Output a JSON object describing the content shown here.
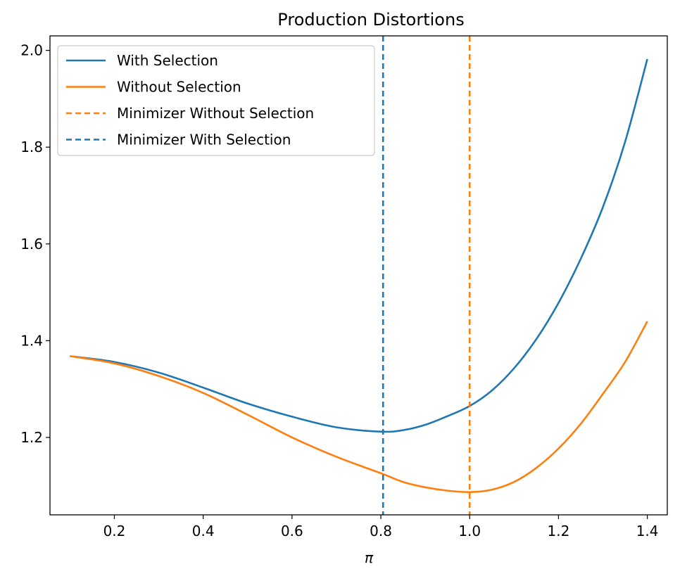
{
  "chart_data": {
    "type": "line",
    "title": "Production Distortions",
    "xlabel": "π",
    "ylabel": "",
    "xlim": [
      0.055,
      1.445
    ],
    "ylim": [
      1.04,
      2.03
    ],
    "xticks": [
      0.2,
      0.4,
      0.6,
      0.8,
      1.0,
      1.2,
      1.4
    ],
    "xtick_labels": [
      "0.2",
      "0.4",
      "0.6",
      "0.8",
      "1.0",
      "1.2",
      "1.4"
    ],
    "yticks": [
      1.2,
      1.4,
      1.6,
      1.8,
      2.0
    ],
    "ytick_labels": [
      "1.2",
      "1.4",
      "1.6",
      "1.8",
      "2.0"
    ],
    "grid": false,
    "legend_position": "top-left",
    "series": [
      {
        "name": "With Selection",
        "color": "#1f77b4",
        "style": "solid",
        "x": [
          0.1,
          0.2,
          0.3,
          0.4,
          0.5,
          0.6,
          0.7,
          0.8,
          0.85,
          0.9,
          0.95,
          1.0,
          1.05,
          1.1,
          1.15,
          1.2,
          1.25,
          1.3,
          1.35,
          1.4
        ],
        "y": [
          1.368,
          1.356,
          1.334,
          1.303,
          1.27,
          1.243,
          1.221,
          1.212,
          1.215,
          1.226,
          1.244,
          1.265,
          1.297,
          1.343,
          1.403,
          1.478,
          1.569,
          1.676,
          1.811,
          1.982
        ]
      },
      {
        "name": "Without Selection",
        "color": "#ff7f0e",
        "style": "solid",
        "x": [
          0.1,
          0.2,
          0.3,
          0.4,
          0.5,
          0.6,
          0.7,
          0.8,
          0.85,
          0.9,
          0.95,
          1.0,
          1.05,
          1.1,
          1.15,
          1.2,
          1.25,
          1.3,
          1.35,
          1.4
        ],
        "y": [
          1.368,
          1.353,
          1.327,
          1.292,
          1.247,
          1.2,
          1.16,
          1.126,
          1.108,
          1.097,
          1.09,
          1.087,
          1.092,
          1.108,
          1.137,
          1.177,
          1.228,
          1.29,
          1.356,
          1.44
        ]
      },
      {
        "name": "Minimizer Without Selection",
        "color": "#ff7f0e",
        "style": "dashed",
        "vline": 1.0
      },
      {
        "name": "Minimizer With Selection",
        "color": "#1f77b4",
        "style": "dashed",
        "vline": 0.805
      }
    ]
  }
}
